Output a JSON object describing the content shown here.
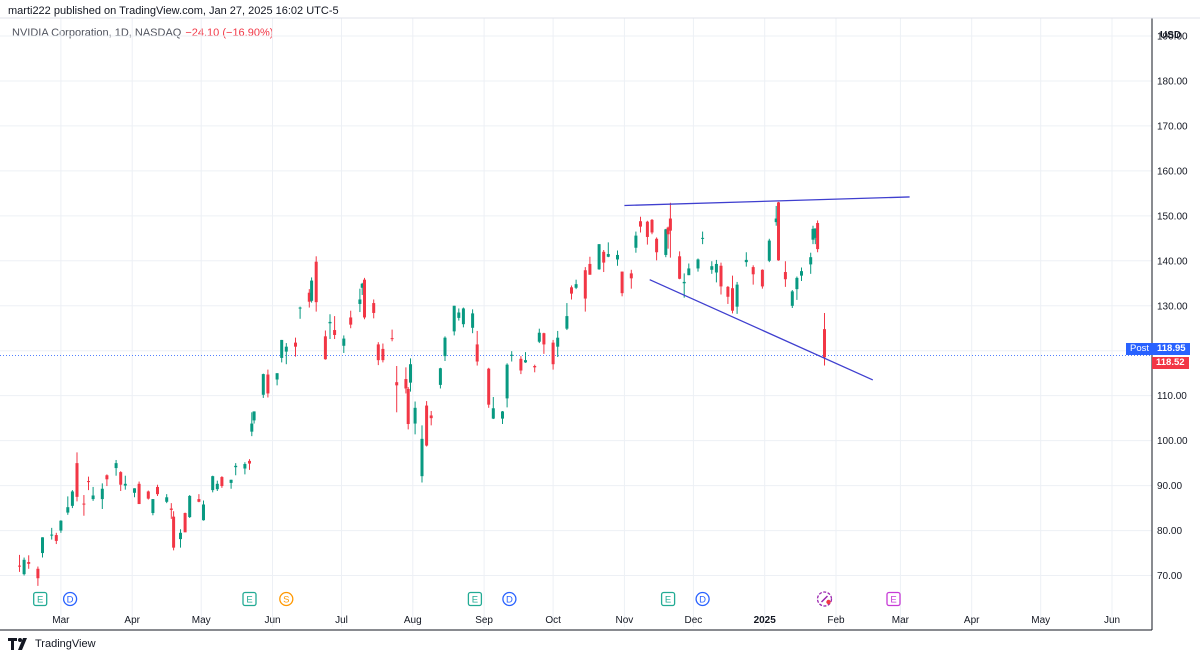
{
  "header": {
    "publisher": "marti222 published on TradingView.com, Jan 27, 2025 16:02 UTC-5"
  },
  "legend": {
    "symbol": "NVIDIA Corporation, 1D, NASDAQ",
    "change": "−24.10 (−16.90%)"
  },
  "currency": "USD",
  "footer": {
    "brand": "TradingView"
  },
  "price_tags": {
    "post_label": "Post",
    "post_value": "118.95",
    "last_value": "118.52"
  },
  "colors": {
    "up": "#089981",
    "down": "#f23645",
    "trendline": "#3f3fcf",
    "grid": "#edf0f5",
    "post_tag": "#2962ff",
    "last_tag": "#f23645",
    "earnings": "#22ab94",
    "dividend": "#2962ff",
    "split": "#ff9800",
    "future_earnings": "#c73ad6"
  },
  "chart_data": {
    "type": "candlestick",
    "ylim": [
      63,
      194
    ],
    "y_ticks": [
      70,
      80,
      90,
      100,
      110,
      120,
      130,
      140,
      150,
      160,
      170,
      180,
      190
    ],
    "y_tick_labels": [
      "70.00",
      "80.00",
      "90.00",
      "100.00",
      "110.00",
      "120.00",
      "130.00",
      "140.00",
      "150.00",
      "160.00",
      "170.00",
      "180.00",
      "190.00"
    ],
    "x_ticks": [
      {
        "label": "Mar",
        "date": "2024-03-01"
      },
      {
        "label": "Apr",
        "date": "2024-04-01"
      },
      {
        "label": "May",
        "date": "2024-05-01"
      },
      {
        "label": "Jun",
        "date": "2024-06-01"
      },
      {
        "label": "Jul",
        "date": "2024-07-01"
      },
      {
        "label": "Aug",
        "date": "2024-08-01"
      },
      {
        "label": "Sep",
        "date": "2024-09-01"
      },
      {
        "label": "Oct",
        "date": "2024-10-01"
      },
      {
        "label": "Nov",
        "date": "2024-11-01"
      },
      {
        "label": "Dec",
        "date": "2024-12-01"
      },
      {
        "label": "2025",
        "date": "2025-01-01",
        "bold": true
      },
      {
        "label": "Feb",
        "date": "2025-02-01"
      },
      {
        "label": "Mar",
        "date": "2025-03-01"
      },
      {
        "label": "Apr",
        "date": "2025-04-01"
      },
      {
        "label": "May",
        "date": "2025-05-01"
      },
      {
        "label": "Jun",
        "date": "2025-06-01"
      }
    ],
    "candles": [
      {
        "d": "2024-02-12",
        "o": 72.2,
        "h": 74.6,
        "l": 70.8,
        "c": 72.1
      },
      {
        "d": "2024-02-14",
        "o": 70.3,
        "h": 74.0,
        "l": 70.0,
        "c": 73.5
      },
      {
        "d": "2024-02-16",
        "o": 73.0,
        "h": 74.5,
        "l": 71.5,
        "c": 72.6
      },
      {
        "d": "2024-02-20",
        "o": 71.5,
        "h": 72.0,
        "l": 67.7,
        "c": 69.4
      },
      {
        "d": "2024-02-22",
        "o": 75.0,
        "h": 78.5,
        "l": 74.0,
        "c": 78.5
      },
      {
        "d": "2024-02-26",
        "o": 79.0,
        "h": 80.6,
        "l": 78.0,
        "c": 79.1
      },
      {
        "d": "2024-02-28",
        "o": 79.0,
        "h": 79.5,
        "l": 77.0,
        "c": 77.7
      },
      {
        "d": "2024-03-01",
        "o": 80.0,
        "h": 82.3,
        "l": 79.5,
        "c": 82.2
      },
      {
        "d": "2024-03-04",
        "o": 84.0,
        "h": 87.6,
        "l": 83.5,
        "c": 85.2
      },
      {
        "d": "2024-03-06",
        "o": 85.5,
        "h": 89.0,
        "l": 85.0,
        "c": 88.7
      },
      {
        "d": "2024-03-08",
        "o": 95.0,
        "h": 97.4,
        "l": 86.5,
        "c": 87.5
      },
      {
        "d": "2024-03-11",
        "o": 86.0,
        "h": 87.9,
        "l": 83.3,
        "c": 85.8
      },
      {
        "d": "2024-03-13",
        "o": 91.0,
        "h": 92.0,
        "l": 89.0,
        "c": 90.9
      },
      {
        "d": "2024-03-15",
        "o": 87.0,
        "h": 89.7,
        "l": 86.6,
        "c": 87.8
      },
      {
        "d": "2024-03-19",
        "o": 87.0,
        "h": 90.5,
        "l": 84.8,
        "c": 89.3
      },
      {
        "d": "2024-03-21",
        "o": 92.3,
        "h": 92.5,
        "l": 89.9,
        "c": 91.4
      },
      {
        "d": "2024-03-25",
        "o": 93.9,
        "h": 95.7,
        "l": 92.2,
        "c": 95.0
      },
      {
        "d": "2024-03-27",
        "o": 93.0,
        "h": 93.2,
        "l": 88.8,
        "c": 90.2
      },
      {
        "d": "2024-03-29",
        "o": 90.0,
        "h": 92.2,
        "l": 89.1,
        "c": 90.4
      },
      {
        "d": "2024-04-02",
        "o": 88.4,
        "h": 89.4,
        "l": 87.4,
        "c": 89.4
      },
      {
        "d": "2024-04-04",
        "o": 90.4,
        "h": 90.9,
        "l": 85.9,
        "c": 85.9
      },
      {
        "d": "2024-04-08",
        "o": 88.7,
        "h": 88.9,
        "l": 86.9,
        "c": 87.1
      },
      {
        "d": "2024-04-10",
        "o": 83.9,
        "h": 87.0,
        "l": 83.4,
        "c": 87.0
      },
      {
        "d": "2024-04-12",
        "o": 89.7,
        "h": 90.2,
        "l": 87.7,
        "c": 88.1
      },
      {
        "d": "2024-04-16",
        "o": 86.4,
        "h": 88.1,
        "l": 86.1,
        "c": 87.4
      },
      {
        "d": "2024-04-18",
        "o": 84.9,
        "h": 86.1,
        "l": 82.6,
        "c": 84.6
      },
      {
        "d": "2024-04-19",
        "o": 83.1,
        "h": 84.3,
        "l": 75.6,
        "c": 76.2
      },
      {
        "d": "2024-04-22",
        "o": 78.1,
        "h": 80.3,
        "l": 76.2,
        "c": 79.5
      },
      {
        "d": "2024-04-24",
        "o": 83.9,
        "h": 84.0,
        "l": 79.8,
        "c": 79.6
      },
      {
        "d": "2024-04-26",
        "o": 83.0,
        "h": 87.9,
        "l": 82.8,
        "c": 87.7
      },
      {
        "d": "2024-04-30",
        "o": 87.0,
        "h": 88.1,
        "l": 86.3,
        "c": 86.4
      },
      {
        "d": "2024-05-02",
        "o": 82.3,
        "h": 86.7,
        "l": 82.2,
        "c": 85.8
      },
      {
        "d": "2024-05-06",
        "o": 89.0,
        "h": 92.2,
        "l": 88.5,
        "c": 92.1
      },
      {
        "d": "2024-05-08",
        "o": 89.2,
        "h": 91.1,
        "l": 88.8,
        "c": 90.4
      },
      {
        "d": "2024-05-10",
        "o": 91.9,
        "h": 92.1,
        "l": 89.5,
        "c": 89.9
      },
      {
        "d": "2024-05-14",
        "o": 90.6,
        "h": 91.3,
        "l": 89.3,
        "c": 91.3
      },
      {
        "d": "2024-05-16",
        "o": 94.1,
        "h": 95.0,
        "l": 92.3,
        "c": 94.4
      },
      {
        "d": "2024-05-20",
        "o": 93.8,
        "h": 95.2,
        "l": 92.5,
        "c": 94.8
      },
      {
        "d": "2024-05-22",
        "o": 95.5,
        "h": 95.9,
        "l": 93.5,
        "c": 94.9
      },
      {
        "d": "2024-05-23",
        "o": 102.0,
        "h": 106.3,
        "l": 101.0,
        "c": 103.8
      },
      {
        "d": "2024-05-24",
        "o": 104.5,
        "h": 106.5,
        "l": 103.8,
        "c": 106.5
      },
      {
        "d": "2024-05-28",
        "o": 110.2,
        "h": 114.9,
        "l": 109.5,
        "c": 114.8
      },
      {
        "d": "2024-05-30",
        "o": 114.7,
        "h": 115.8,
        "l": 109.6,
        "c": 110.5
      },
      {
        "d": "2024-06-03",
        "o": 113.6,
        "h": 115.0,
        "l": 112.3,
        "c": 115.0
      },
      {
        "d": "2024-06-05",
        "o": 118.4,
        "h": 122.4,
        "l": 117.4,
        "c": 122.4
      },
      {
        "d": "2024-06-07",
        "o": 119.8,
        "h": 121.7,
        "l": 117.0,
        "c": 120.9
      },
      {
        "d": "2024-06-11",
        "o": 121.8,
        "h": 122.9,
        "l": 118.7,
        "c": 120.9
      },
      {
        "d": "2024-06-13",
        "o": 129.4,
        "h": 129.8,
        "l": 127.1,
        "c": 129.6
      },
      {
        "d": "2024-06-17",
        "o": 132.9,
        "h": 133.7,
        "l": 129.6,
        "c": 130.9
      },
      {
        "d": "2024-06-18",
        "o": 131.1,
        "h": 136.3,
        "l": 130.7,
        "c": 135.6
      },
      {
        "d": "2024-06-20",
        "o": 139.8,
        "h": 141.0,
        "l": 128.7,
        "c": 130.8
      },
      {
        "d": "2024-06-24",
        "o": 123.2,
        "h": 124.5,
        "l": 118.0,
        "c": 118.1
      },
      {
        "d": "2024-06-26",
        "o": 126.1,
        "h": 128.1,
        "l": 122.6,
        "c": 126.4
      },
      {
        "d": "2024-06-28",
        "o": 124.6,
        "h": 127.7,
        "l": 122.6,
        "c": 123.5
      },
      {
        "d": "2024-07-02",
        "o": 121.1,
        "h": 123.4,
        "l": 119.5,
        "c": 122.7
      },
      {
        "d": "2024-07-05",
        "o": 127.4,
        "h": 128.9,
        "l": 125.0,
        "c": 125.8
      },
      {
        "d": "2024-07-09",
        "o": 130.4,
        "h": 133.8,
        "l": 128.6,
        "c": 131.4
      },
      {
        "d": "2024-07-10",
        "o": 134.0,
        "h": 135.1,
        "l": 132.4,
        "c": 134.9
      },
      {
        "d": "2024-07-11",
        "o": 135.8,
        "h": 136.2,
        "l": 127.0,
        "c": 127.4
      },
      {
        "d": "2024-07-15",
        "o": 130.6,
        "h": 131.4,
        "l": 127.2,
        "c": 128.4
      },
      {
        "d": "2024-07-17",
        "o": 121.4,
        "h": 121.9,
        "l": 116.8,
        "c": 117.9
      },
      {
        "d": "2024-07-19",
        "o": 120.4,
        "h": 121.6,
        "l": 117.4,
        "c": 117.9
      },
      {
        "d": "2024-07-23",
        "o": 122.8,
        "h": 124.7,
        "l": 122.1,
        "c": 122.6
      },
      {
        "d": "2024-07-25",
        "o": 113.0,
        "h": 116.6,
        "l": 106.3,
        "c": 112.3
      },
      {
        "d": "2024-07-29",
        "o": 113.7,
        "h": 116.3,
        "l": 110.5,
        "c": 111.6
      },
      {
        "d": "2024-07-30",
        "o": 111.5,
        "h": 111.9,
        "l": 102.5,
        "c": 103.7
      },
      {
        "d": "2024-07-31",
        "o": 112.9,
        "h": 118.3,
        "l": 110.9,
        "c": 117.0
      },
      {
        "d": "2024-08-02",
        "o": 103.8,
        "h": 108.7,
        "l": 101.4,
        "c": 107.3
      },
      {
        "d": "2024-08-05",
        "o": 92.1,
        "h": 103.4,
        "l": 90.7,
        "c": 100.4
      },
      {
        "d": "2024-08-07",
        "o": 107.8,
        "h": 108.8,
        "l": 98.7,
        "c": 98.9
      },
      {
        "d": "2024-08-09",
        "o": 105.6,
        "h": 106.6,
        "l": 103.4,
        "c": 105.0
      },
      {
        "d": "2024-08-13",
        "o": 112.4,
        "h": 116.2,
        "l": 111.6,
        "c": 116.1
      },
      {
        "d": "2024-08-15",
        "o": 118.8,
        "h": 123.2,
        "l": 117.7,
        "c": 122.9
      },
      {
        "d": "2024-08-19",
        "o": 124.3,
        "h": 130.0,
        "l": 123.4,
        "c": 130.0
      },
      {
        "d": "2024-08-21",
        "o": 127.3,
        "h": 129.4,
        "l": 126.7,
        "c": 128.5
      },
      {
        "d": "2024-08-23",
        "o": 125.9,
        "h": 129.6,
        "l": 125.2,
        "c": 129.4
      },
      {
        "d": "2024-08-27",
        "o": 125.1,
        "h": 129.2,
        "l": 123.9,
        "c": 128.3
      },
      {
        "d": "2024-08-29",
        "o": 121.4,
        "h": 124.4,
        "l": 116.7,
        "c": 117.6
      },
      {
        "d": "2024-09-03",
        "o": 116.0,
        "h": 116.2,
        "l": 107.3,
        "c": 108.0
      },
      {
        "d": "2024-09-05",
        "o": 104.9,
        "h": 109.7,
        "l": 104.8,
        "c": 107.2
      },
      {
        "d": "2024-09-09",
        "o": 104.9,
        "h": 106.6,
        "l": 103.7,
        "c": 106.5
      },
      {
        "d": "2024-09-11",
        "o": 109.4,
        "h": 117.2,
        "l": 107.4,
        "c": 116.9
      },
      {
        "d": "2024-09-13",
        "o": 119.1,
        "h": 119.9,
        "l": 117.6,
        "c": 119.1
      },
      {
        "d": "2024-09-17",
        "o": 118.2,
        "h": 118.8,
        "l": 114.8,
        "c": 115.6
      },
      {
        "d": "2024-09-19",
        "o": 117.4,
        "h": 119.7,
        "l": 117.3,
        "c": 117.9
      },
      {
        "d": "2024-09-23",
        "o": 116.6,
        "h": 116.9,
        "l": 115.2,
        "c": 116.3
      },
      {
        "d": "2024-09-25",
        "o": 122.0,
        "h": 124.9,
        "l": 121.7,
        "c": 124.0
      },
      {
        "d": "2024-09-27",
        "o": 123.9,
        "h": 124.0,
        "l": 119.3,
        "c": 121.4
      },
      {
        "d": "2024-10-01",
        "o": 121.8,
        "h": 122.4,
        "l": 115.8,
        "c": 117.0
      },
      {
        "d": "2024-10-03",
        "o": 120.9,
        "h": 124.4,
        "l": 118.6,
        "c": 122.9
      },
      {
        "d": "2024-10-07",
        "o": 124.9,
        "h": 130.6,
        "l": 124.6,
        "c": 127.7
      },
      {
        "d": "2024-10-09",
        "o": 134.1,
        "h": 134.5,
        "l": 131.4,
        "c": 132.7
      },
      {
        "d": "2024-10-11",
        "o": 134.0,
        "h": 135.8,
        "l": 133.7,
        "c": 134.8
      },
      {
        "d": "2024-10-15",
        "o": 137.9,
        "h": 138.6,
        "l": 128.7,
        "c": 131.6
      },
      {
        "d": "2024-10-17",
        "o": 139.3,
        "h": 140.9,
        "l": 136.9,
        "c": 136.9
      },
      {
        "d": "2024-10-21",
        "o": 138.1,
        "h": 143.7,
        "l": 138.0,
        "c": 143.7
      },
      {
        "d": "2024-10-23",
        "o": 142.0,
        "h": 142.4,
        "l": 137.5,
        "c": 139.6
      },
      {
        "d": "2024-10-25",
        "o": 140.9,
        "h": 144.1,
        "l": 140.8,
        "c": 141.5
      },
      {
        "d": "2024-10-29",
        "o": 140.3,
        "h": 142.3,
        "l": 138.9,
        "c": 141.3
      },
      {
        "d": "2024-10-31",
        "o": 137.6,
        "h": 137.6,
        "l": 132.1,
        "c": 132.8
      },
      {
        "d": "2024-11-04",
        "o": 137.2,
        "h": 138.0,
        "l": 133.8,
        "c": 136.1
      },
      {
        "d": "2024-11-06",
        "o": 142.9,
        "h": 146.5,
        "l": 141.8,
        "c": 145.6
      },
      {
        "d": "2024-11-08",
        "o": 148.8,
        "h": 149.8,
        "l": 146.3,
        "c": 147.6
      },
      {
        "d": "2024-11-11",
        "o": 148.7,
        "h": 148.9,
        "l": 143.6,
        "c": 145.3
      },
      {
        "d": "2024-11-13",
        "o": 149.1,
        "h": 149.3,
        "l": 145.9,
        "c": 146.3
      },
      {
        "d": "2024-11-15",
        "o": 144.9,
        "h": 145.2,
        "l": 140.1,
        "c": 141.9
      },
      {
        "d": "2024-11-19",
        "o": 141.3,
        "h": 147.1,
        "l": 140.8,
        "c": 147.0
      },
      {
        "d": "2024-11-20",
        "o": 147.4,
        "h": 147.6,
        "l": 142.7,
        "c": 145.9
      },
      {
        "d": "2024-11-21",
        "o": 149.4,
        "h": 152.9,
        "l": 140.7,
        "c": 146.7
      },
      {
        "d": "2024-11-25",
        "o": 141.0,
        "h": 142.1,
        "l": 135.9,
        "c": 136.0
      },
      {
        "d": "2024-11-27",
        "o": 135.0,
        "h": 137.2,
        "l": 131.8,
        "c": 135.3
      },
      {
        "d": "2024-11-29",
        "o": 136.8,
        "h": 139.4,
        "l": 136.8,
        "c": 138.3
      },
      {
        "d": "2024-12-03",
        "o": 138.3,
        "h": 140.5,
        "l": 137.6,
        "c": 140.3
      },
      {
        "d": "2024-12-05",
        "o": 145.1,
        "h": 146.5,
        "l": 143.7,
        "c": 145.1
      },
      {
        "d": "2024-12-09",
        "o": 138.0,
        "h": 139.9,
        "l": 137.1,
        "c": 138.8
      },
      {
        "d": "2024-12-11",
        "o": 137.4,
        "h": 140.2,
        "l": 135.2,
        "c": 139.3
      },
      {
        "d": "2024-12-13",
        "o": 138.9,
        "h": 139.6,
        "l": 132.5,
        "c": 134.3
      },
      {
        "d": "2024-12-16",
        "o": 134.2,
        "h": 134.4,
        "l": 130.4,
        "c": 132.0
      },
      {
        "d": "2024-12-18",
        "o": 133.9,
        "h": 136.7,
        "l": 128.3,
        "c": 128.9
      },
      {
        "d": "2024-12-20",
        "o": 129.8,
        "h": 135.3,
        "l": 128.2,
        "c": 134.7
      },
      {
        "d": "2024-12-24",
        "o": 139.7,
        "h": 141.9,
        "l": 138.7,
        "c": 140.2
      },
      {
        "d": "2024-12-27",
        "o": 138.6,
        "h": 139.0,
        "l": 134.7,
        "c": 137.0
      },
      {
        "d": "2024-12-31",
        "o": 138.0,
        "h": 138.1,
        "l": 133.8,
        "c": 134.3
      },
      {
        "d": "2025-01-03",
        "o": 140.0,
        "h": 144.9,
        "l": 139.7,
        "c": 144.5
      },
      {
        "d": "2025-01-06",
        "o": 148.6,
        "h": 152.2,
        "l": 147.8,
        "c": 149.4
      },
      {
        "d": "2025-01-07",
        "o": 153.0,
        "h": 153.1,
        "l": 140.0,
        "c": 140.1
      },
      {
        "d": "2025-01-10",
        "o": 137.5,
        "h": 139.9,
        "l": 134.2,
        "c": 135.9
      },
      {
        "d": "2025-01-13",
        "o": 129.99,
        "h": 133.5,
        "l": 129.5,
        "c": 133.2
      },
      {
        "d": "2025-01-15",
        "o": 133.7,
        "h": 136.5,
        "l": 131.3,
        "c": 136.2
      },
      {
        "d": "2025-01-17",
        "o": 136.7,
        "h": 138.5,
        "l": 135.5,
        "c": 137.7
      },
      {
        "d": "2025-01-21",
        "o": 139.2,
        "h": 141.8,
        "l": 137.1,
        "c": 140.8
      },
      {
        "d": "2025-01-22",
        "o": 144.7,
        "h": 147.8,
        "l": 143.7,
        "c": 147.1
      },
      {
        "d": "2025-01-23",
        "o": 145.1,
        "h": 147.2,
        "l": 143.7,
        "c": 147.2
      },
      {
        "d": "2025-01-24",
        "o": 148.4,
        "h": 148.97,
        "l": 141.9,
        "c": 142.6
      },
      {
        "d": "2025-01-27",
        "o": 124.8,
        "h": 128.4,
        "l": 116.7,
        "c": 118.52
      }
    ],
    "trendlines": [
      {
        "name": "upper",
        "x1": "2024-11-01",
        "y1": 152.3,
        "x2": "2025-03-05",
        "y2": 154.2
      },
      {
        "name": "lower",
        "x1": "2024-11-12",
        "y1": 135.8,
        "x2": "2025-02-17",
        "y2": 113.5
      }
    ],
    "reference_line": {
      "value": 118.95,
      "style": "dotted"
    },
    "events": [
      {
        "type": "E",
        "date": "2024-02-21"
      },
      {
        "type": "D",
        "date": "2024-03-05"
      },
      {
        "type": "E",
        "date": "2024-05-22"
      },
      {
        "type": "S",
        "date": "2024-06-07"
      },
      {
        "type": "E",
        "date": "2024-08-28"
      },
      {
        "type": "D",
        "date": "2024-09-12"
      },
      {
        "type": "E",
        "date": "2024-11-20"
      },
      {
        "type": "D",
        "date": "2024-12-05"
      },
      {
        "type": "news",
        "date": "2025-01-27"
      },
      {
        "type": "E-future",
        "date": "2025-02-26"
      }
    ]
  }
}
